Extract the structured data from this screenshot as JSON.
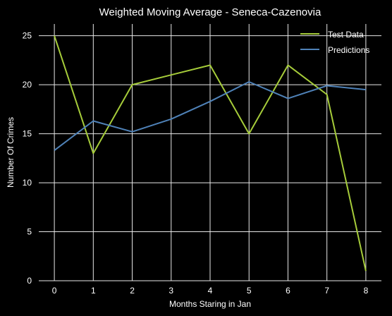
{
  "chart_data": {
    "type": "line",
    "title": "Weighted Moving Average - Seneca-Cazenovia",
    "xlabel": "Months Staring in Jan",
    "ylabel": "Number Of Crimes",
    "x": [
      0,
      1,
      2,
      3,
      4,
      5,
      6,
      7,
      8
    ],
    "xlim": [
      -0.4,
      8.4
    ],
    "ylim": [
      0,
      26.2
    ],
    "xticks": [
      0,
      1,
      2,
      3,
      4,
      5,
      6,
      7,
      8
    ],
    "yticks": [
      0,
      5,
      10,
      15,
      20,
      25
    ],
    "grid": true,
    "legend_position": "top-right",
    "series": [
      {
        "name": "Test Data",
        "color": "#a6cc3a",
        "values": [
          25,
          13,
          20,
          21,
          22,
          15,
          22,
          19,
          1
        ]
      },
      {
        "name": "Predictions",
        "color": "#4f82b8",
        "values": [
          13.3,
          16.3,
          15.2,
          16.5,
          18.3,
          20.3,
          18.6,
          19.9,
          19.5
        ]
      }
    ]
  },
  "colors": {
    "background": "#000000",
    "text": "#ffffff",
    "grid": "#e8e8e8"
  }
}
